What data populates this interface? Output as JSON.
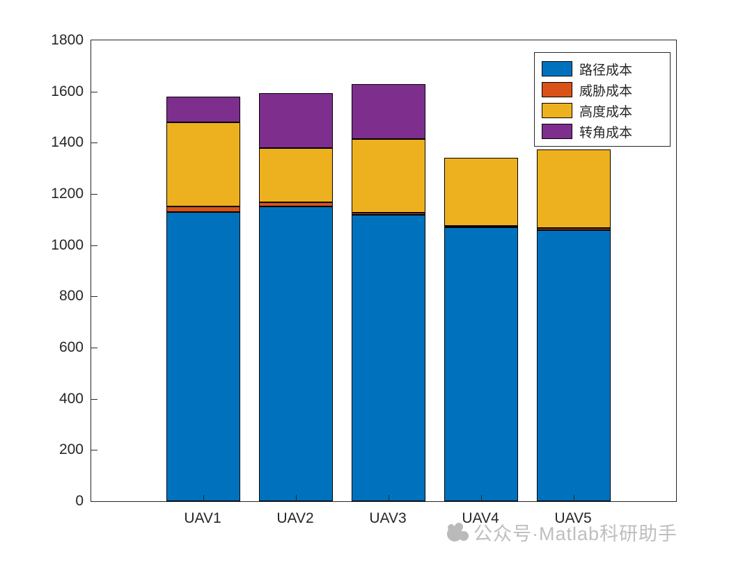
{
  "chart_data": {
    "type": "bar",
    "stacked": true,
    "title": "",
    "xlabel": "",
    "ylabel": "",
    "categories": [
      "UAV1",
      "UAV2",
      "UAV3",
      "UAV4",
      "UAV5"
    ],
    "series": [
      {
        "name": "路径成本",
        "color": "#0072BD",
        "values": [
          1130,
          1150,
          1118,
          1070,
          1060
        ]
      },
      {
        "name": "威胁成本",
        "color": "#D95319",
        "values": [
          20,
          18,
          10,
          6,
          8
        ]
      },
      {
        "name": "高度成本",
        "color": "#EDB120",
        "values": [
          330,
          212,
          287,
          264,
          307
        ]
      },
      {
        "name": "转角成本",
        "color": "#7E2F8E",
        "values": [
          100,
          215,
          215,
          0,
          0
        ]
      }
    ],
    "totals": [
      1580,
      1595,
      1630,
      1340,
      1375
    ],
    "ylim": [
      0,
      1800
    ],
    "yticks": [
      0,
      200,
      400,
      600,
      800,
      1000,
      1200,
      1400,
      1600,
      1800
    ],
    "grid": false,
    "legend_position": "top-right",
    "axis_color": "#262626"
  },
  "watermark": {
    "text": "公众号·Matlab科研助手"
  }
}
